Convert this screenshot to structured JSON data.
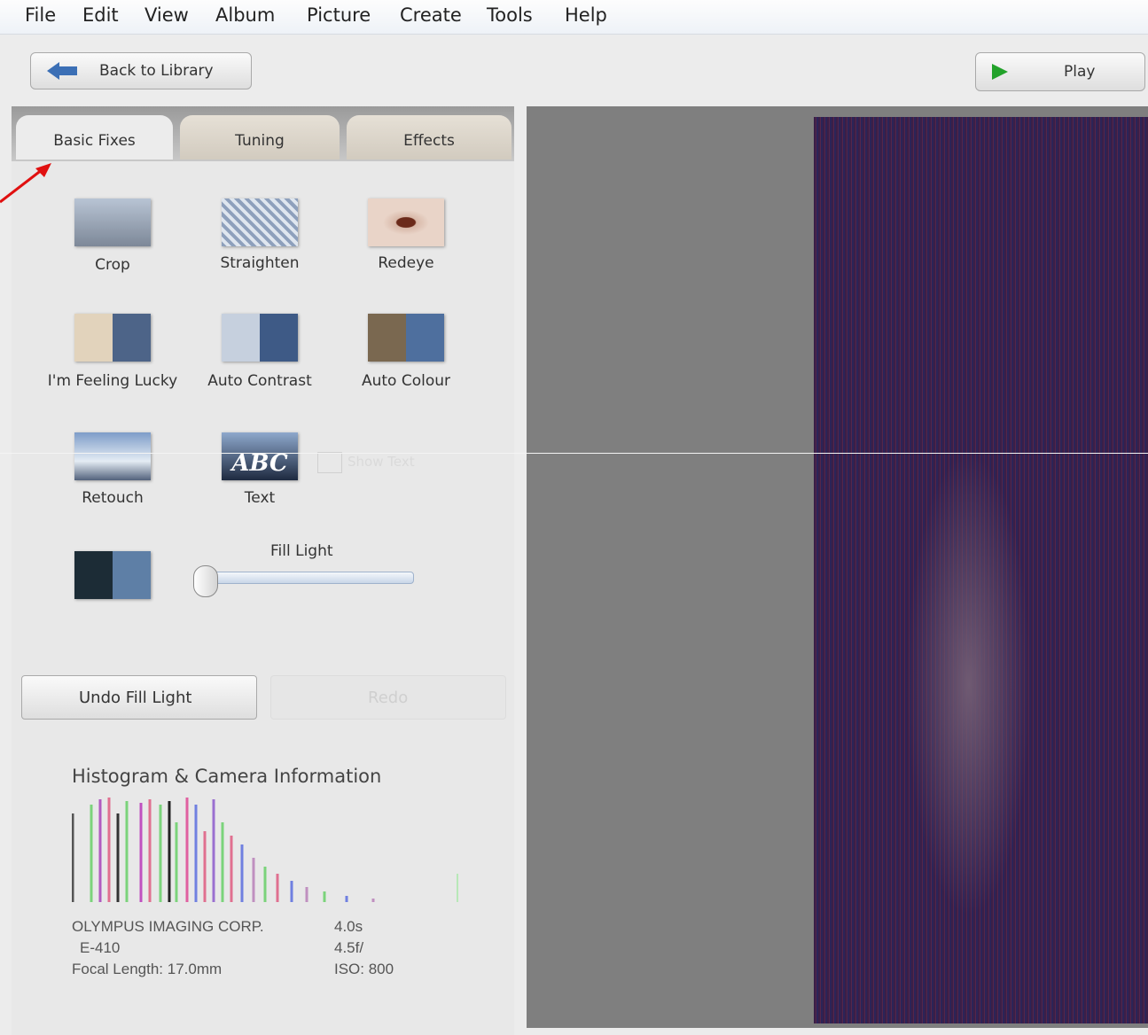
{
  "menu": [
    "File",
    "Edit",
    "View",
    "Album",
    "Picture",
    "Create",
    "Tools",
    "Help"
  ],
  "toolbar": {
    "back": "Back to Library",
    "play": "Play"
  },
  "tabs": [
    "Basic Fixes",
    "Tuning",
    "Effects"
  ],
  "tools": [
    "Crop",
    "Straighten",
    "Redeye",
    "I'm Feeling Lucky",
    "Auto Contrast",
    "Auto Colour",
    "Retouch",
    "Text"
  ],
  "show_text": "Show Text",
  "fill_light": "Fill Light",
  "buttons": {
    "undo": "Undo Fill Light",
    "redo": "Redo"
  },
  "histogram": {
    "title": "Histogram & Camera Information",
    "camera": {
      "make": "OLYMPUS IMAGING CORP.",
      "model": "E-410",
      "focal": "Focal Length: 17.0mm",
      "exposure": "4.0s",
      "aperture": "4.5f/",
      "iso": "ISO: 800"
    }
  }
}
